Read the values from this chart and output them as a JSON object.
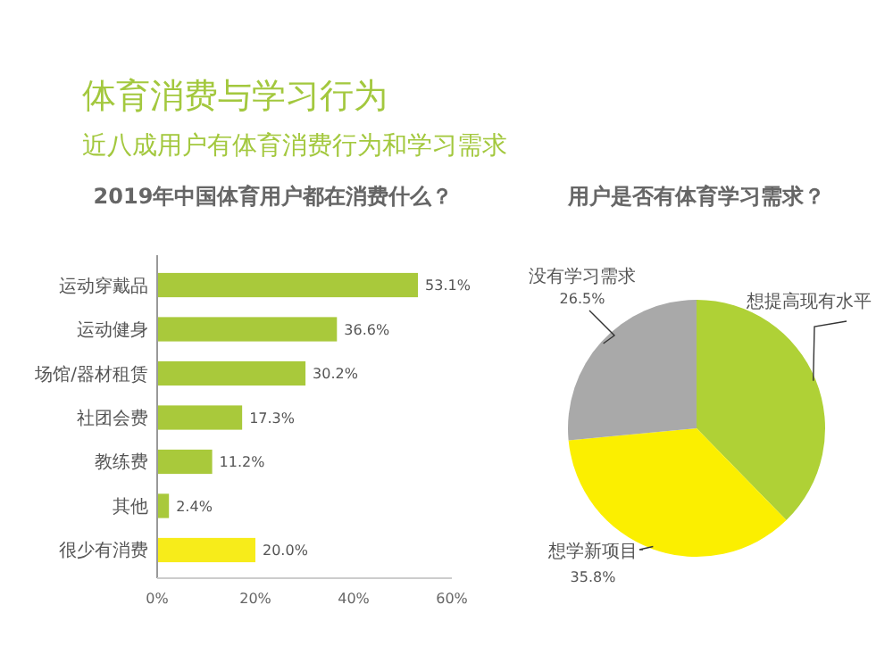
{
  "chart_data": [
    {
      "type": "other",
      "title": "体育消费与学习行为",
      "subtitle": "近八成用户有体育消费行为和学习需求"
    },
    {
      "type": "bar",
      "orientation": "horizontal",
      "title": "2019年中国体育用户都在消费什么？",
      "categories": [
        "运动穿戴品",
        "运动健身",
        "场馆/器材租赁",
        "社团会费",
        "教练费",
        "其他",
        "很少有消费"
      ],
      "values": [
        53.1,
        36.6,
        30.2,
        17.3,
        11.2,
        2.4,
        20.0
      ],
      "colors": [
        "#a9c93b",
        "#a9c93b",
        "#a9c93b",
        "#a9c93b",
        "#a9c93b",
        "#a9c93b",
        "#f7ec1a"
      ],
      "value_labels": [
        "53.1%",
        "36.6%",
        "30.2%",
        "17.3%",
        "11.2%",
        "2.4%",
        "20.0%"
      ],
      "xlim": [
        0,
        60
      ],
      "xticks": [
        {
          "value": 0,
          "label": "0%"
        },
        {
          "value": 20,
          "label": "20%"
        },
        {
          "value": 40,
          "label": "40%"
        },
        {
          "value": 60,
          "label": "60%"
        }
      ]
    },
    {
      "type": "pie",
      "title": "用户是否有体育学习需求？",
      "categories": [
        "想提高现有水平",
        "想学新项目",
        "没有学习需求"
      ],
      "values": [
        37.7,
        35.8,
        26.5
      ],
      "colors": [
        "#afd136",
        "#fbef00",
        "#a9a9a9"
      ],
      "value_labels": [
        null,
        "35.8%",
        "26.5%"
      ]
    }
  ]
}
